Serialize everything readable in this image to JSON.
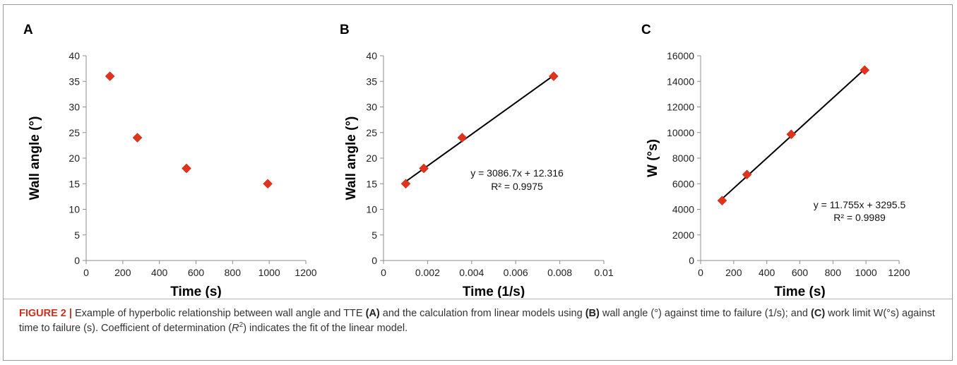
{
  "chart_data": [
    {
      "panel": "A",
      "type": "scatter",
      "xlabel": "Time (s)",
      "ylabel": "Wall angle (°)",
      "xlim": [
        0,
        1200
      ],
      "ylim": [
        0,
        40
      ],
      "xticks": [
        "0",
        "200",
        "400",
        "600",
        "800",
        "1000",
        "1200"
      ],
      "yticks": [
        "0",
        "5",
        "10",
        "15",
        "20",
        "25",
        "30",
        "35",
        "40"
      ],
      "grid": false,
      "series": [
        {
          "marker": "diamond",
          "color": "#e2321b",
          "points": [
            {
              "x": 130,
              "y": 36
            },
            {
              "x": 280,
              "y": 24
            },
            {
              "x": 548,
              "y": 18
            },
            {
              "x": 992,
              "y": 15
            }
          ]
        }
      ]
    },
    {
      "panel": "B",
      "type": "scatter",
      "xlabel": "Time (1/s)",
      "ylabel": "Wall angle (°)",
      "xlim": [
        0,
        0.01
      ],
      "ylim": [
        0,
        40
      ],
      "xticks": [
        "0",
        "0.002",
        "0.004",
        "0.006",
        "0.008",
        "0.01"
      ],
      "yticks": [
        "0",
        "5",
        "10",
        "15",
        "20",
        "25",
        "30",
        "35",
        "40"
      ],
      "grid": false,
      "series": [
        {
          "marker": "diamond",
          "color": "#e2321b",
          "points": [
            {
              "x": 0.00101,
              "y": 15
            },
            {
              "x": 0.00183,
              "y": 18
            },
            {
              "x": 0.00357,
              "y": 24
            },
            {
              "x": 0.00772,
              "y": 36
            }
          ]
        }
      ],
      "trendline": {
        "slope": 3086.7,
        "intercept": 12.316,
        "x_from": 0.00101,
        "x_to": 0.00772,
        "color": "#000000"
      },
      "equation": "y = 3086.7x + 12.316",
      "r_squared": "R² = 0.9975"
    },
    {
      "panel": "C",
      "type": "scatter",
      "xlabel": "Time (s)",
      "ylabel": "W (°s)",
      "xlim": [
        0,
        1200
      ],
      "ylim": [
        0,
        16000
      ],
      "xticks": [
        "0",
        "200",
        "400",
        "600",
        "800",
        "1000",
        "1200"
      ],
      "yticks": [
        "0",
        "2000",
        "4000",
        "6000",
        "8000",
        "10000",
        "12000",
        "14000",
        "16000"
      ],
      "grid": false,
      "series": [
        {
          "marker": "diamond",
          "color": "#e2321b",
          "points": [
            {
              "x": 130,
              "y": 4680
            },
            {
              "x": 280,
              "y": 6720
            },
            {
              "x": 548,
              "y": 9864
            },
            {
              "x": 992,
              "y": 14880
            }
          ]
        }
      ],
      "trendline": {
        "slope": 11.755,
        "intercept": 3295.5,
        "x_from": 130,
        "x_to": 992,
        "color": "#000000"
      },
      "equation": "y = 11.755x + 3295.5",
      "r_squared": "R² = 0.9989"
    }
  ],
  "caption": {
    "figure_number": "FIGURE 2 |",
    "parts": [
      {
        "text": " Example of hyperbolic relationship between wall angle and TTE ",
        "bold": false
      },
      {
        "text": "(A)",
        "bold": true
      },
      {
        "text": " and the calculation from linear models using ",
        "bold": false
      },
      {
        "text": "(B)",
        "bold": true
      },
      {
        "text": " wall angle (°) against time to failure (1/s); and ",
        "bold": false
      },
      {
        "text": "(C)",
        "bold": true
      },
      {
        "text": " work limit W(°s) against time to failure (s). Coefficient of determination (",
        "bold": false
      },
      {
        "text": "R",
        "italic": true
      },
      {
        "text": "2",
        "sup": true
      },
      {
        "text": ") indicates the fit of the linear model.",
        "bold": false
      }
    ]
  }
}
